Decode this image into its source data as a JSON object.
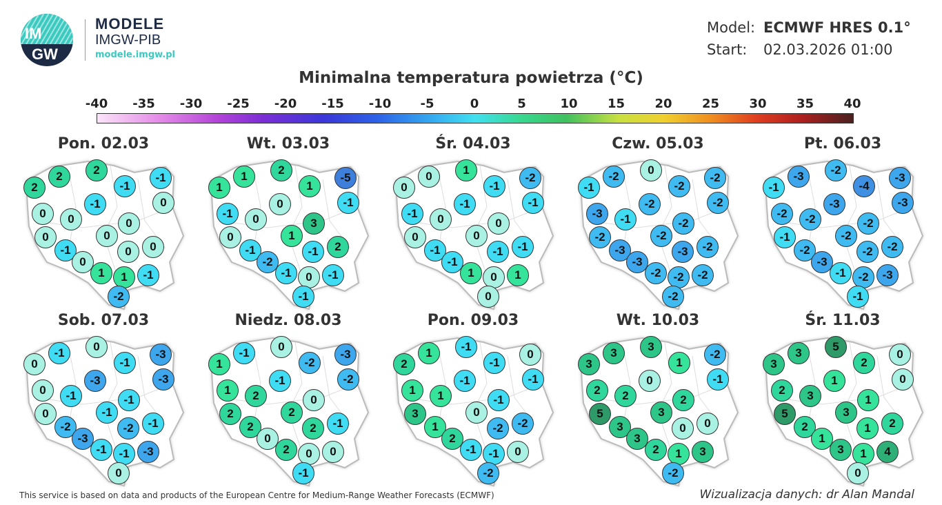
{
  "logo": {
    "circle_text_top": "IM",
    "circle_text_bottom": "GW",
    "name": "MODELE",
    "org": "IMGW-PIB",
    "url": "modele.imgw.pl"
  },
  "meta": {
    "model_label": "Model:",
    "model_value": "ECMWF HRES 0.1°",
    "start_label": "Start:",
    "start_value": "02.03.2026 01:00"
  },
  "title": "Minimalna temperatura powietrza (°C)",
  "colorbar": {
    "ticks": [
      "-40",
      "-35",
      "-30",
      "-25",
      "-20",
      "-15",
      "-10",
      "-5",
      "0",
      "5",
      "10",
      "15",
      "20",
      "25",
      "30",
      "35",
      "40"
    ],
    "range": [
      -40,
      40
    ]
  },
  "maps": [
    {
      "title": "Pon. 02.03",
      "values": [
        2,
        2,
        2,
        -1,
        -1,
        0,
        -1,
        0,
        0,
        0,
        0,
        0,
        0,
        0,
        -1,
        0,
        1,
        1,
        -1,
        -2
      ]
    },
    {
      "title": "Wt. 03.03",
      "values": [
        1,
        1,
        2,
        -5,
        1,
        -1,
        0,
        -1,
        0,
        3,
        0,
        1,
        2,
        -1,
        -1,
        -2,
        -1,
        0,
        -1,
        -1
      ]
    },
    {
      "title": "Śr. 04.03",
      "values": [
        0,
        0,
        1,
        -2,
        -1,
        -1,
        -1,
        -1,
        0,
        0,
        0,
        0,
        -1,
        -1,
        -1,
        -1,
        1,
        0,
        1,
        0
      ]
    },
    {
      "title": "Czw. 05.03",
      "values": [
        -1,
        -2,
        0,
        -2,
        -2,
        -2,
        -2,
        -3,
        -1,
        -2,
        -2,
        -2,
        -2,
        -3,
        -3,
        -3,
        -2,
        -2,
        -2,
        -2
      ]
    },
    {
      "title": "Pt. 06.03",
      "values": [
        -1,
        -3,
        -2,
        -3,
        -4,
        -3,
        -3,
        -2,
        -2,
        -2,
        -1,
        -2,
        -2,
        -2,
        -2,
        -3,
        -1,
        -2,
        -3,
        -1
      ]
    },
    {
      "title": "Sob. 07.03",
      "values": [
        0,
        -1,
        0,
        -3,
        -1,
        -3,
        -3,
        0,
        -1,
        -1,
        0,
        -1,
        -1,
        -2,
        -2,
        -3,
        -1,
        -1,
        -3,
        0
      ]
    },
    {
      "title": "Niedz. 08.03",
      "values": [
        1,
        -1,
        0,
        -3,
        -2,
        -2,
        -1,
        1,
        2,
        0,
        2,
        2,
        -1,
        2,
        2,
        0,
        2,
        0,
        0,
        -1
      ]
    },
    {
      "title": "Pon. 09.03",
      "values": [
        2,
        1,
        -1,
        0,
        -1,
        -1,
        -1,
        1,
        1,
        -1,
        3,
        0,
        -2,
        -2,
        1,
        2,
        -1,
        -1,
        0,
        -2
      ]
    },
    {
      "title": "Wt. 10.03",
      "values": [
        3,
        3,
        3,
        -2,
        1,
        -1,
        0,
        2,
        2,
        2,
        5,
        3,
        0,
        0,
        3,
        3,
        2,
        1,
        3,
        -2
      ]
    },
    {
      "title": "Śr. 11.03",
      "values": [
        3,
        3,
        5,
        0,
        2,
        0,
        1,
        2,
        3,
        1,
        5,
        3,
        2,
        1,
        2,
        1,
        3,
        1,
        4,
        0
      ]
    }
  ],
  "footer": {
    "left": "This service is based on data and products of the European Centre for Medium-Range Weather Forecasts (ECMWF)",
    "right": "Wizualizacja danych: dr Alan Mandal"
  }
}
